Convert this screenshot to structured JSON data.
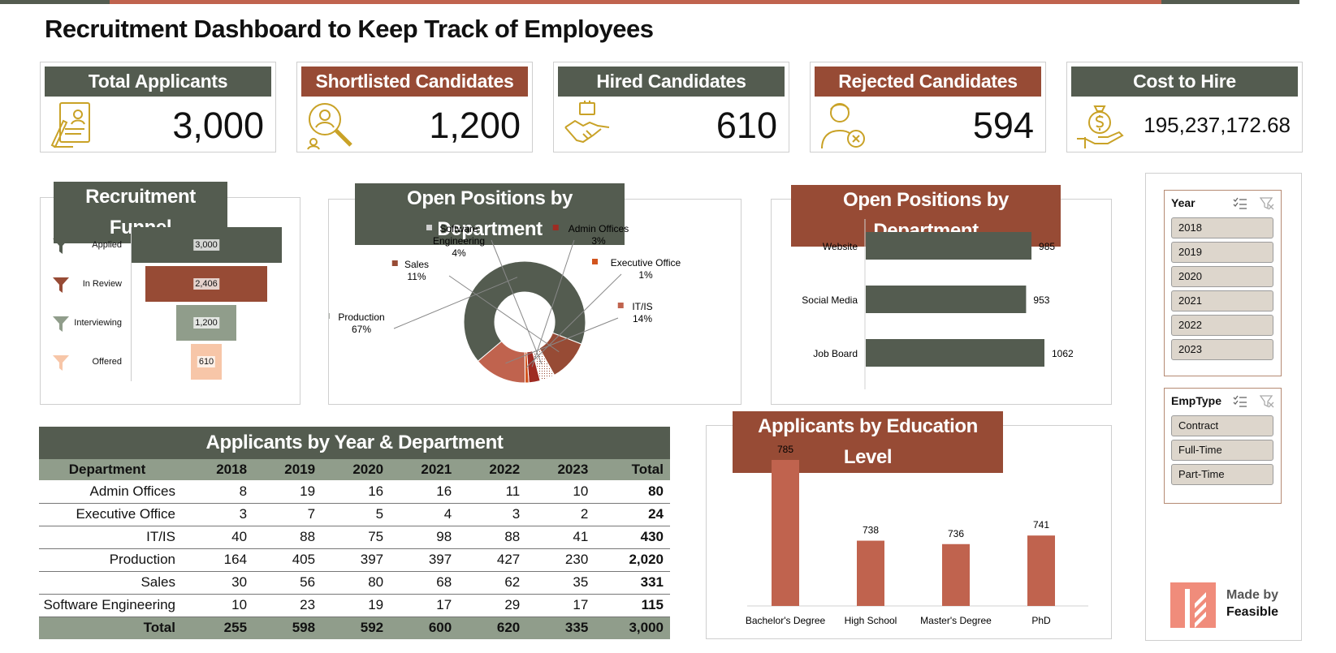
{
  "title": "Recruitment Dashboard to Keep Track of Employees",
  "kpis": [
    {
      "label": "Total Applicants",
      "value": "3,000"
    },
    {
      "label": "Shortlisted Candidates",
      "value": "1,200"
    },
    {
      "label": "Hired Candidates",
      "value": "610"
    },
    {
      "label": "Rejected Candidates",
      "value": "594"
    },
    {
      "label": "Cost to Hire",
      "value": "195,237,172.68"
    }
  ],
  "colors": {
    "green": "#545c50",
    "rust": "#974b35",
    "brick": "#c0634e",
    "sage": "#909d8b",
    "peach": "#f7c6a8",
    "icon": "#c9a227"
  },
  "chart_data": [
    {
      "type": "bar",
      "title": "Recruitment Funnel",
      "categories": [
        "Applied",
        "In Review",
        "Interviewing",
        "Offered"
      ],
      "values": [
        3000,
        2406,
        1200,
        610
      ],
      "labels": [
        "3,000",
        "2,406",
        "1,200",
        "610"
      ]
    },
    {
      "type": "pie",
      "title": "Open Positions by Department",
      "categories": [
        "Production",
        "Sales",
        "Software Engineering",
        "Admin Offices",
        "Executive Office",
        "IT/IS"
      ],
      "values": [
        67,
        11,
        4,
        3,
        1,
        14
      ],
      "pct_labels": [
        "67%",
        "11%",
        "4%",
        "3%",
        "1%",
        "14%"
      ]
    },
    {
      "type": "bar",
      "title": "Open Positions by Department",
      "categories": [
        "Website",
        "Social Media",
        "Job Board"
      ],
      "values": [
        985,
        953,
        1062
      ],
      "labels": [
        "985",
        "953",
        "1062"
      ]
    },
    {
      "type": "bar",
      "title": "Applicants by Education Level",
      "categories": [
        "Bachelor's Degree",
        "High School",
        "Master's Degree",
        "PhD"
      ],
      "values": [
        785,
        738,
        736,
        741
      ],
      "labels": [
        "785",
        "738",
        "736",
        "741"
      ]
    },
    {
      "type": "table",
      "title": "Applicants by Year & Department",
      "columns": [
        "Department",
        "2018",
        "2019",
        "2020",
        "2021",
        "2022",
        "2023",
        "Total"
      ],
      "rows": [
        [
          "Admin Offices",
          "8",
          "19",
          "16",
          "16",
          "11",
          "10",
          "80"
        ],
        [
          "Executive Office",
          "3",
          "7",
          "5",
          "4",
          "3",
          "2",
          "24"
        ],
        [
          "IT/IS",
          "40",
          "88",
          "75",
          "98",
          "88",
          "41",
          "430"
        ],
        [
          "Production",
          "164",
          "405",
          "397",
          "397",
          "427",
          "230",
          "2,020"
        ],
        [
          "Sales",
          "30",
          "56",
          "80",
          "68",
          "62",
          "35",
          "331"
        ],
        [
          "Software Engineering",
          "10",
          "23",
          "19",
          "17",
          "29",
          "17",
          "115"
        ]
      ],
      "total": [
        "Total",
        "255",
        "598",
        "592",
        "600",
        "620",
        "335",
        "3,000"
      ]
    }
  ],
  "slicers": {
    "year": {
      "header": "Year",
      "items": [
        "2018",
        "2019",
        "2020",
        "2021",
        "2022",
        "2023"
      ]
    },
    "emptype": {
      "header": "EmpType",
      "items": [
        "Contract",
        "Full-Time",
        "Part-Time"
      ]
    }
  },
  "brand": {
    "line1": "Made by",
    "line2": "Feasible"
  }
}
